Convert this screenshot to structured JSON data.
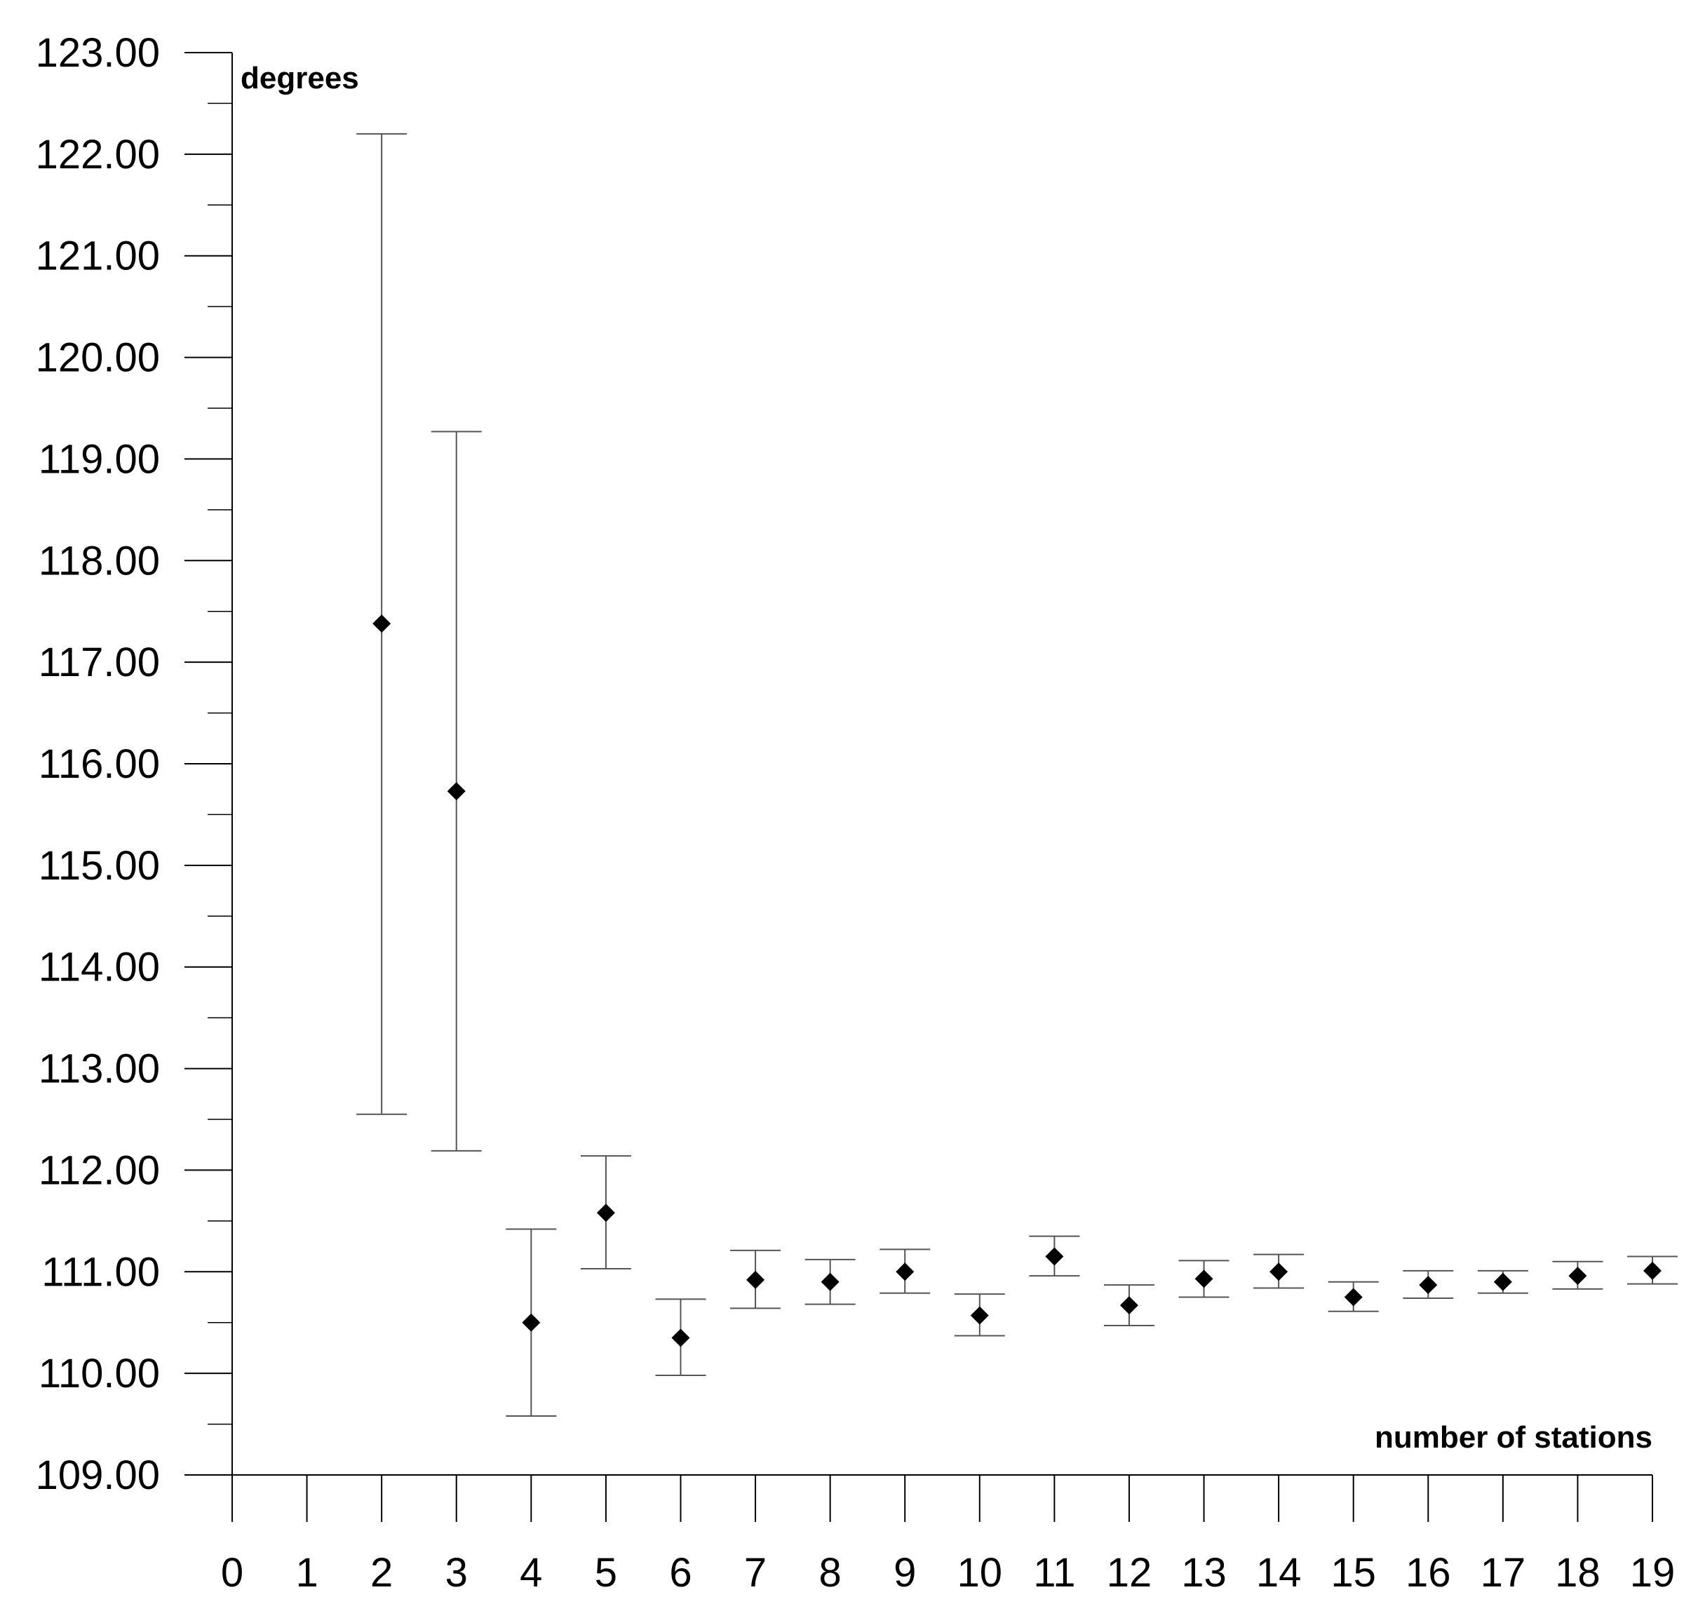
{
  "chart_data": {
    "type": "scatter",
    "title": "",
    "xlabel": "number of stations",
    "ylabel": "degrees",
    "xlim": [
      0,
      19
    ],
    "ylim": [
      109,
      123
    ],
    "grid": false,
    "x_ticks": [
      0,
      1,
      2,
      3,
      4,
      5,
      6,
      7,
      8,
      9,
      10,
      11,
      12,
      13,
      14,
      15,
      16,
      17,
      18,
      19
    ],
    "x_tick_labels": [
      "0",
      "1",
      "2",
      "3",
      "4",
      "5",
      "6",
      "7",
      "8",
      "9",
      "10",
      "11",
      "12",
      "13",
      "14",
      "15",
      "16",
      "17",
      "18",
      "19"
    ],
    "y_ticks": [
      109,
      110,
      111,
      112,
      113,
      114,
      115,
      116,
      117,
      118,
      119,
      120,
      121,
      122,
      123
    ],
    "y_tick_labels": [
      "109.00",
      "110.00",
      "111.00",
      "112.00",
      "113.00",
      "114.00",
      "115.00",
      "116.00",
      "117.00",
      "118.00",
      "119.00",
      "120.00",
      "121.00",
      "122.00",
      "123.00"
    ],
    "marker": "diamond",
    "series": [
      {
        "points": [
          {
            "x": 2,
            "y": 117.38,
            "low": 112.55,
            "high": 122.2
          },
          {
            "x": 3,
            "y": 115.73,
            "low": 112.19,
            "high": 119.27
          },
          {
            "x": 4,
            "y": 110.5,
            "low": 109.58,
            "high": 111.42
          },
          {
            "x": 5,
            "y": 111.58,
            "low": 111.03,
            "high": 112.14
          },
          {
            "x": 6,
            "y": 110.35,
            "low": 109.98,
            "high": 110.73
          },
          {
            "x": 7,
            "y": 110.92,
            "low": 110.64,
            "high": 111.21
          },
          {
            "x": 8,
            "y": 110.9,
            "low": 110.68,
            "high": 111.12
          },
          {
            "x": 9,
            "y": 111.0,
            "low": 110.79,
            "high": 111.22
          },
          {
            "x": 10,
            "y": 110.57,
            "low": 110.37,
            "high": 110.78
          },
          {
            "x": 11,
            "y": 111.15,
            "low": 110.96,
            "high": 111.35
          },
          {
            "x": 12,
            "y": 110.67,
            "low": 110.47,
            "high": 110.87
          },
          {
            "x": 13,
            "y": 110.93,
            "low": 110.75,
            "high": 111.11
          },
          {
            "x": 14,
            "y": 111.0,
            "low": 110.84,
            "high": 111.17
          },
          {
            "x": 15,
            "y": 110.75,
            "low": 110.61,
            "high": 110.9
          },
          {
            "x": 16,
            "y": 110.87,
            "low": 110.74,
            "high": 111.01
          },
          {
            "x": 17,
            "y": 110.9,
            "low": 110.79,
            "high": 111.01
          },
          {
            "x": 18,
            "y": 110.96,
            "low": 110.83,
            "high": 111.1
          },
          {
            "x": 19,
            "y": 111.01,
            "low": 110.88,
            "high": 111.15
          }
        ]
      }
    ]
  },
  "colors": {
    "axis": "#000000",
    "errorbar": "#555555",
    "marker": "#000000",
    "background": "#ffffff"
  }
}
